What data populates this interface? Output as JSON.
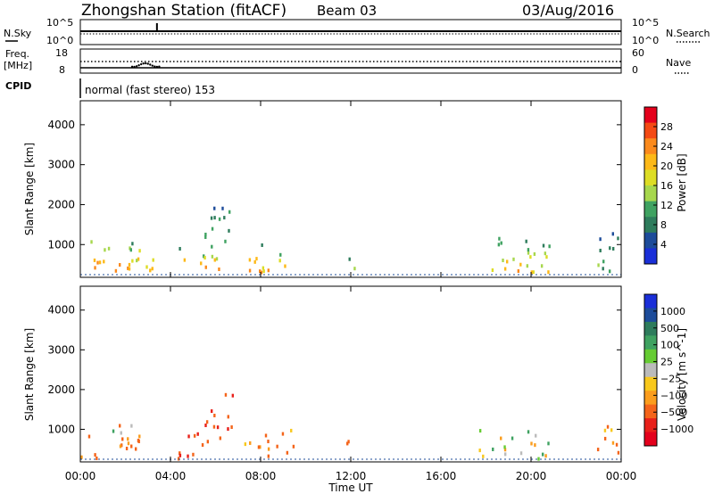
{
  "header": {
    "station": "Zhongshan Station (fitACF)",
    "beam": "Beam 03",
    "date": "03/Aug/2016"
  },
  "nsky_panel": {
    "label": "N.Sky",
    "left_ticks": [
      "10^5",
      "10^0"
    ],
    "right_label": "N.Search",
    "right_ticks": [
      "10^5",
      "10^0"
    ]
  },
  "freq_panel": {
    "label_line1": "Freq.",
    "label_line2": "[MHz]",
    "left_ticks": [
      "18",
      "8"
    ],
    "right_label": "Nave",
    "right_ticks": [
      "60",
      "0"
    ]
  },
  "cpid_panel": {
    "label": "CPID",
    "text": "normal (fast stereo) 153"
  },
  "power_panel": {
    "ylabel": "Slant Range [km]",
    "colorbar_label": "Power [dB]",
    "colorbar_ticks": [
      "28",
      "24",
      "20",
      "16",
      "12",
      "8",
      "4"
    ],
    "colorbar_colors": [
      "#e4001c",
      "#f44a14",
      "#fb8a1d",
      "#fdb918",
      "#dddd25",
      "#a7d74d",
      "#3fa261",
      "#2e7c5c",
      "#1d4c9a",
      "#1a2fd8"
    ]
  },
  "velocity_panel": {
    "ylabel": "Slant Range [km]",
    "colorbar_label": "Velocity [m s^-1]",
    "colorbar_ticks": [
      "1000",
      "500",
      "100",
      "25",
      "−25",
      "−100",
      "−500",
      "−1000"
    ],
    "colorbar_colors": [
      "#1a2fd8",
      "#1d4c9a",
      "#2e7c5c",
      "#3fa261",
      "#66cc33",
      "#bbbbbb",
      "#f8c81c",
      "#fb9d1d",
      "#f4641a",
      "#e8201a",
      "#e4001c"
    ]
  },
  "y_ticks": [
    "4000",
    "3000",
    "2000",
    "1000"
  ],
  "x_ticks": [
    "00:00",
    "04:00",
    "08:00",
    "12:00",
    "16:00",
    "20:00",
    "00:00"
  ],
  "xlabel": "Time UT",
  "chart_data": {
    "type": "heatmap",
    "x_unit": "hours UT",
    "xlim": [
      0,
      24
    ],
    "ylim": [
      180,
      4600
    ],
    "power_clusters": [
      {
        "t0": 0.0,
        "t1": 2.6,
        "r0": 300,
        "r1": 1200,
        "core": 22
      },
      {
        "t0": 2.9,
        "t1": 3.5,
        "r0": 300,
        "r1": 1000,
        "core": 18
      },
      {
        "t0": 4.2,
        "t1": 6.2,
        "r0": 300,
        "r1": 950,
        "core": 24
      },
      {
        "t0": 5.5,
        "t1": 6.8,
        "r0": 1000,
        "r1": 2100,
        "core": 10
      },
      {
        "t0": 7.2,
        "t1": 9.5,
        "r0": 300,
        "r1": 1000,
        "core": 20
      },
      {
        "t0": 11.8,
        "t1": 12.2,
        "r0": 300,
        "r1": 800,
        "core": 14
      },
      {
        "t0": 17.6,
        "t1": 20.8,
        "r0": 300,
        "r1": 1200,
        "core": 18
      },
      {
        "t0": 22.9,
        "t1": 24.0,
        "r0": 300,
        "r1": 1400,
        "core": 10
      }
    ],
    "velocity_clusters": [
      {
        "t0": 0.0,
        "t1": 2.6,
        "r0": 250,
        "r1": 1000,
        "v": -150
      },
      {
        "t0": 1.3,
        "t1": 2.3,
        "r0": 900,
        "r1": 1400,
        "v": 0
      },
      {
        "t0": 4.2,
        "t1": 6.2,
        "r0": 250,
        "r1": 950,
        "v": -200
      },
      {
        "t0": 5.5,
        "t1": 6.8,
        "r0": 1000,
        "r1": 2100,
        "v": -250
      },
      {
        "t0": 7.2,
        "t1": 9.5,
        "r0": 250,
        "r1": 1000,
        "v": -120
      },
      {
        "t0": 11.8,
        "t1": 12.2,
        "r0": 250,
        "r1": 800,
        "v": -150
      },
      {
        "t0": 17.6,
        "t1": 20.8,
        "r0": 250,
        "r1": 1000,
        "v": 60
      },
      {
        "t0": 22.9,
        "t1": 24.0,
        "r0": 250,
        "r1": 1200,
        "v": -100
      }
    ]
  }
}
